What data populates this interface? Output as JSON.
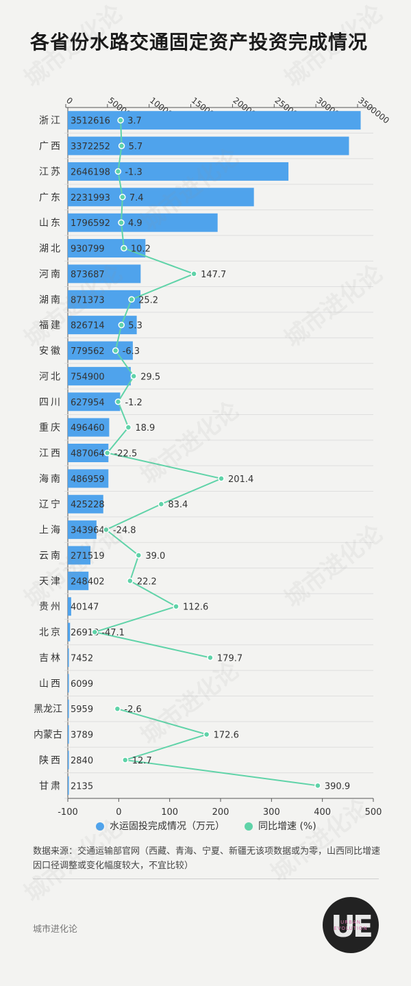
{
  "title": "各省份水路交通固定资产投资完成情况",
  "legend": {
    "bar_label": "水运固投完成情况（万元）",
    "line_label": "同比增速 (%)"
  },
  "source_note": "数据来源：交通运输部官网（西藏、青海、宁夏、新疆无该项数据或为零，山西同比增速因口径调整或变化幅度较大，不宜比较）",
  "brand": "城市进化论",
  "logo": {
    "big": "UE",
    "small_line1": "URBAN",
    "small_line2": "EVOLUTION"
  },
  "watermark": "城市进化论",
  "colors": {
    "bar": "#4fa3ec",
    "line": "#5fd3a8",
    "background": "#f3f3f1"
  },
  "chart_data": {
    "type": "bar",
    "orientation": "horizontal",
    "categories": [
      "浙江",
      "广西",
      "江苏",
      "广东",
      "山东",
      "湖北",
      "河南",
      "湖南",
      "福建",
      "安徽",
      "河北",
      "四川",
      "重庆",
      "江西",
      "海南",
      "辽宁",
      "上海",
      "云南",
      "天津",
      "贵州",
      "北京",
      "吉林",
      "山西",
      "黑龙江",
      "内蒙古",
      "陕西",
      "甘肃"
    ],
    "series": [
      {
        "name": "水运固投完成情况（万元）",
        "type": "bar",
        "values": [
          3512616,
          3372252,
          2646198,
          2231993,
          1796592,
          930799,
          873687,
          871373,
          826714,
          779562,
          754900,
          627954,
          496460,
          487064,
          486959,
          425228,
          343964,
          271519,
          248402,
          40147,
          26913,
          7452,
          6099,
          5959,
          3789,
          2840,
          2135
        ],
        "labels": [
          "3512616",
          "3372252",
          "2646198",
          "2231993",
          "1796592",
          "930799",
          "873687",
          "871373",
          "826714",
          "779562",
          "754900",
          "627954",
          "496460",
          "487064",
          "486959",
          "425228",
          "343964",
          "271519",
          "248402",
          "40147",
          "26913",
          "7452",
          "6099",
          "5959",
          "3789",
          "2840",
          "2135"
        ]
      },
      {
        "name": "同比增速 (%)",
        "type": "line",
        "values": [
          3.7,
          5.7,
          -1.3,
          7.4,
          4.9,
          10.2,
          147.7,
          25.2,
          5.3,
          -6.3,
          29.5,
          -1.2,
          18.9,
          -22.5,
          201.4,
          83.4,
          -24.8,
          39.0,
          22.2,
          112.6,
          -47.1,
          179.7,
          null,
          -2.6,
          172.6,
          12.7,
          390.9
        ],
        "labels": [
          "3.7",
          "5.7",
          "-1.3",
          "7.4",
          "4.9",
          "10.2",
          "147.7",
          "25.2",
          "5.3",
          "-6.3",
          "29.5",
          "-1.2",
          "18.9",
          "-22.5",
          "201.4",
          "83.4",
          "-24.8",
          "39.0",
          "22.2",
          "112.6",
          "-47.1",
          "179.7",
          "",
          "-2.6",
          "172.6",
          "12.7",
          "390.9"
        ]
      }
    ],
    "top_axis": {
      "min": 0,
      "max": 3500000,
      "ticks": [
        0,
        500000,
        1000000,
        1500000,
        2000000,
        2500000,
        3000000,
        3500000
      ],
      "tick_labels": [
        "0",
        "500000",
        "1000000",
        "1500000",
        "2000000",
        "2500000",
        "3000000",
        "3500000"
      ]
    },
    "bottom_axis": {
      "min": -100,
      "max": 500,
      "ticks": [
        -100,
        0,
        100,
        200,
        300,
        400,
        500
      ],
      "tick_labels": [
        "-100",
        "0",
        "100",
        "200",
        "300",
        "400",
        "500"
      ]
    },
    "grid": false,
    "legend_position": "bottom"
  }
}
